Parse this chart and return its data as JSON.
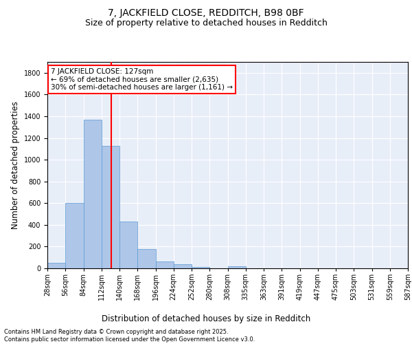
{
  "title1": "7, JACKFIELD CLOSE, REDDITCH, B98 0BF",
  "title2": "Size of property relative to detached houses in Redditch",
  "xlabel": "Distribution of detached houses by size in Redditch",
  "ylabel": "Number of detached properties",
  "bar_values": [
    50,
    600,
    1370,
    1130,
    430,
    175,
    65,
    40,
    15,
    2,
    20,
    0,
    0,
    0,
    0,
    0,
    0,
    0,
    0,
    0
  ],
  "bar_labels": [
    "28sqm",
    "56sqm",
    "84sqm",
    "112sqm",
    "140sqm",
    "168sqm",
    "196sqm",
    "224sqm",
    "252sqm",
    "280sqm",
    "308sqm",
    "335sqm",
    "363sqm",
    "391sqm",
    "419sqm",
    "447sqm",
    "475sqm",
    "503sqm",
    "531sqm",
    "559sqm",
    "587sqm"
  ],
  "bar_color": "#aec6e8",
  "bar_edge_color": "#5b9bd5",
  "vline_color": "red",
  "annotation_text": "7 JACKFIELD CLOSE: 127sqm\n← 69% of detached houses are smaller (2,635)\n30% of semi-detached houses are larger (1,161) →",
  "annotation_box_color": "red",
  "ylim": [
    0,
    1900
  ],
  "yticks": [
    0,
    200,
    400,
    600,
    800,
    1000,
    1200,
    1400,
    1600,
    1800
  ],
  "bg_color": "#e8eef8",
  "grid_color": "#ffffff",
  "footer": "Contains HM Land Registry data © Crown copyright and database right 2025.\nContains public sector information licensed under the Open Government Licence v3.0.",
  "title1_fontsize": 10,
  "title2_fontsize": 9,
  "xlabel_fontsize": 8.5,
  "ylabel_fontsize": 8.5,
  "tick_fontsize": 7,
  "annotation_fontsize": 7.5,
  "footer_fontsize": 6
}
